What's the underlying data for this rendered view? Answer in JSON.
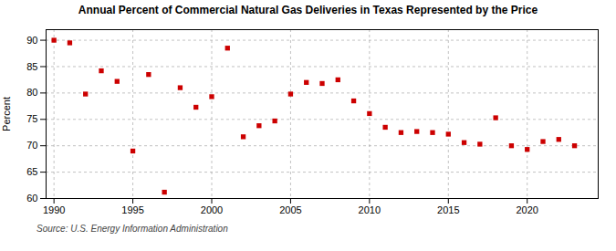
{
  "chart_data": {
    "type": "scatter",
    "title": "Annual Percent of Commercial Natural Gas Deliveries in Texas Represented by the Price",
    "ylabel": "Percent",
    "annotations": [
      "Source: U.S. Energy Information Administration"
    ],
    "x": [
      1990,
      1991,
      1992,
      1993,
      1994,
      1995,
      1996,
      1997,
      1998,
      1999,
      2000,
      2001,
      2002,
      2003,
      2004,
      2005,
      2006,
      2007,
      2008,
      2009,
      2010,
      2011,
      2012,
      2013,
      2014,
      2015,
      2016,
      2017,
      2018,
      2019,
      2020,
      2021,
      2022,
      2023
    ],
    "values": [
      90.0,
      89.5,
      79.8,
      84.2,
      82.2,
      69.0,
      83.5,
      61.2,
      81.0,
      77.3,
      79.3,
      88.5,
      71.7,
      73.8,
      74.7,
      79.8,
      82.0,
      81.8,
      82.5,
      78.5,
      76.1,
      73.5,
      72.5,
      72.7,
      72.5,
      72.2,
      70.6,
      70.3,
      75.3,
      70.0,
      69.3,
      70.8,
      71.2,
      70.0
    ],
    "color": "#cc0000",
    "marker": "square",
    "xlim": [
      1989.5,
      2024.5
    ],
    "ylim": [
      60,
      92
    ],
    "xticks": [
      1990,
      1995,
      2000,
      2005,
      2010,
      2015,
      2020
    ],
    "yticks": [
      60,
      65,
      70,
      75,
      80,
      85,
      90
    ],
    "grid": true
  }
}
